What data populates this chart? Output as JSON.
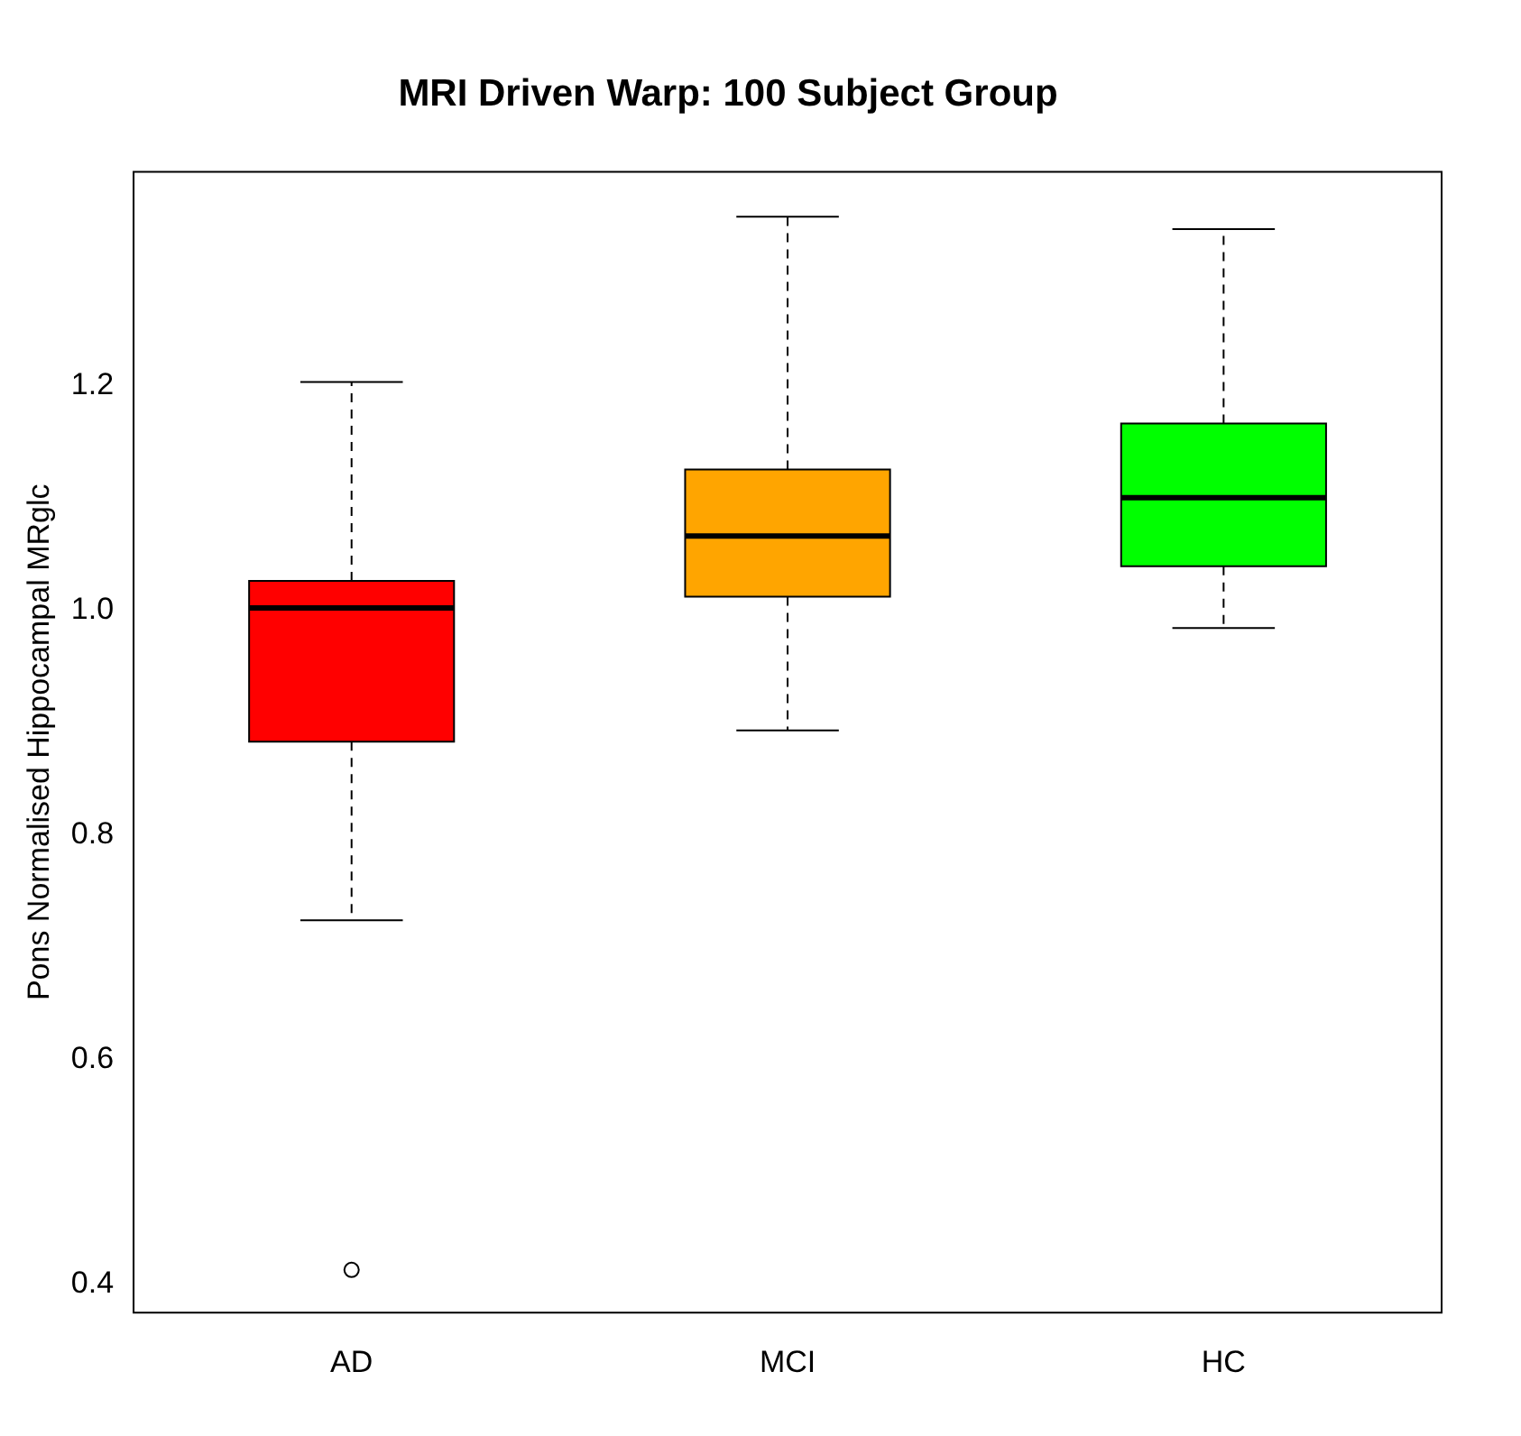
{
  "chart_data": {
    "type": "box",
    "title": "MRI Driven Warp: 100 Subject Group",
    "ylabel": "Pons Normalised Hippocampal MRglc",
    "categories": [
      "AD",
      "MCI",
      "HC"
    ],
    "colors": [
      "#ff0000",
      "#ffa500",
      "#00ff00"
    ],
    "boxes": [
      {
        "low": 0.724,
        "q1": 0.883,
        "median": 1.002,
        "q3": 1.026,
        "high": 1.203,
        "outliers": [
          0.413
        ]
      },
      {
        "low": 0.893,
        "q1": 1.012,
        "median": 1.066,
        "q3": 1.125,
        "high": 1.35
      },
      {
        "low": 0.984,
        "q1": 1.039,
        "median": 1.1,
        "q3": 1.166,
        "high": 1.339
      }
    ],
    "ylim": [
      0.375,
      1.39
    ],
    "yticks": [
      0.4,
      0.6,
      0.8,
      {
        "value": 1.0,
        "label": "1.0"
      },
      1.2
    ],
    "grid": false,
    "legend": false
  }
}
